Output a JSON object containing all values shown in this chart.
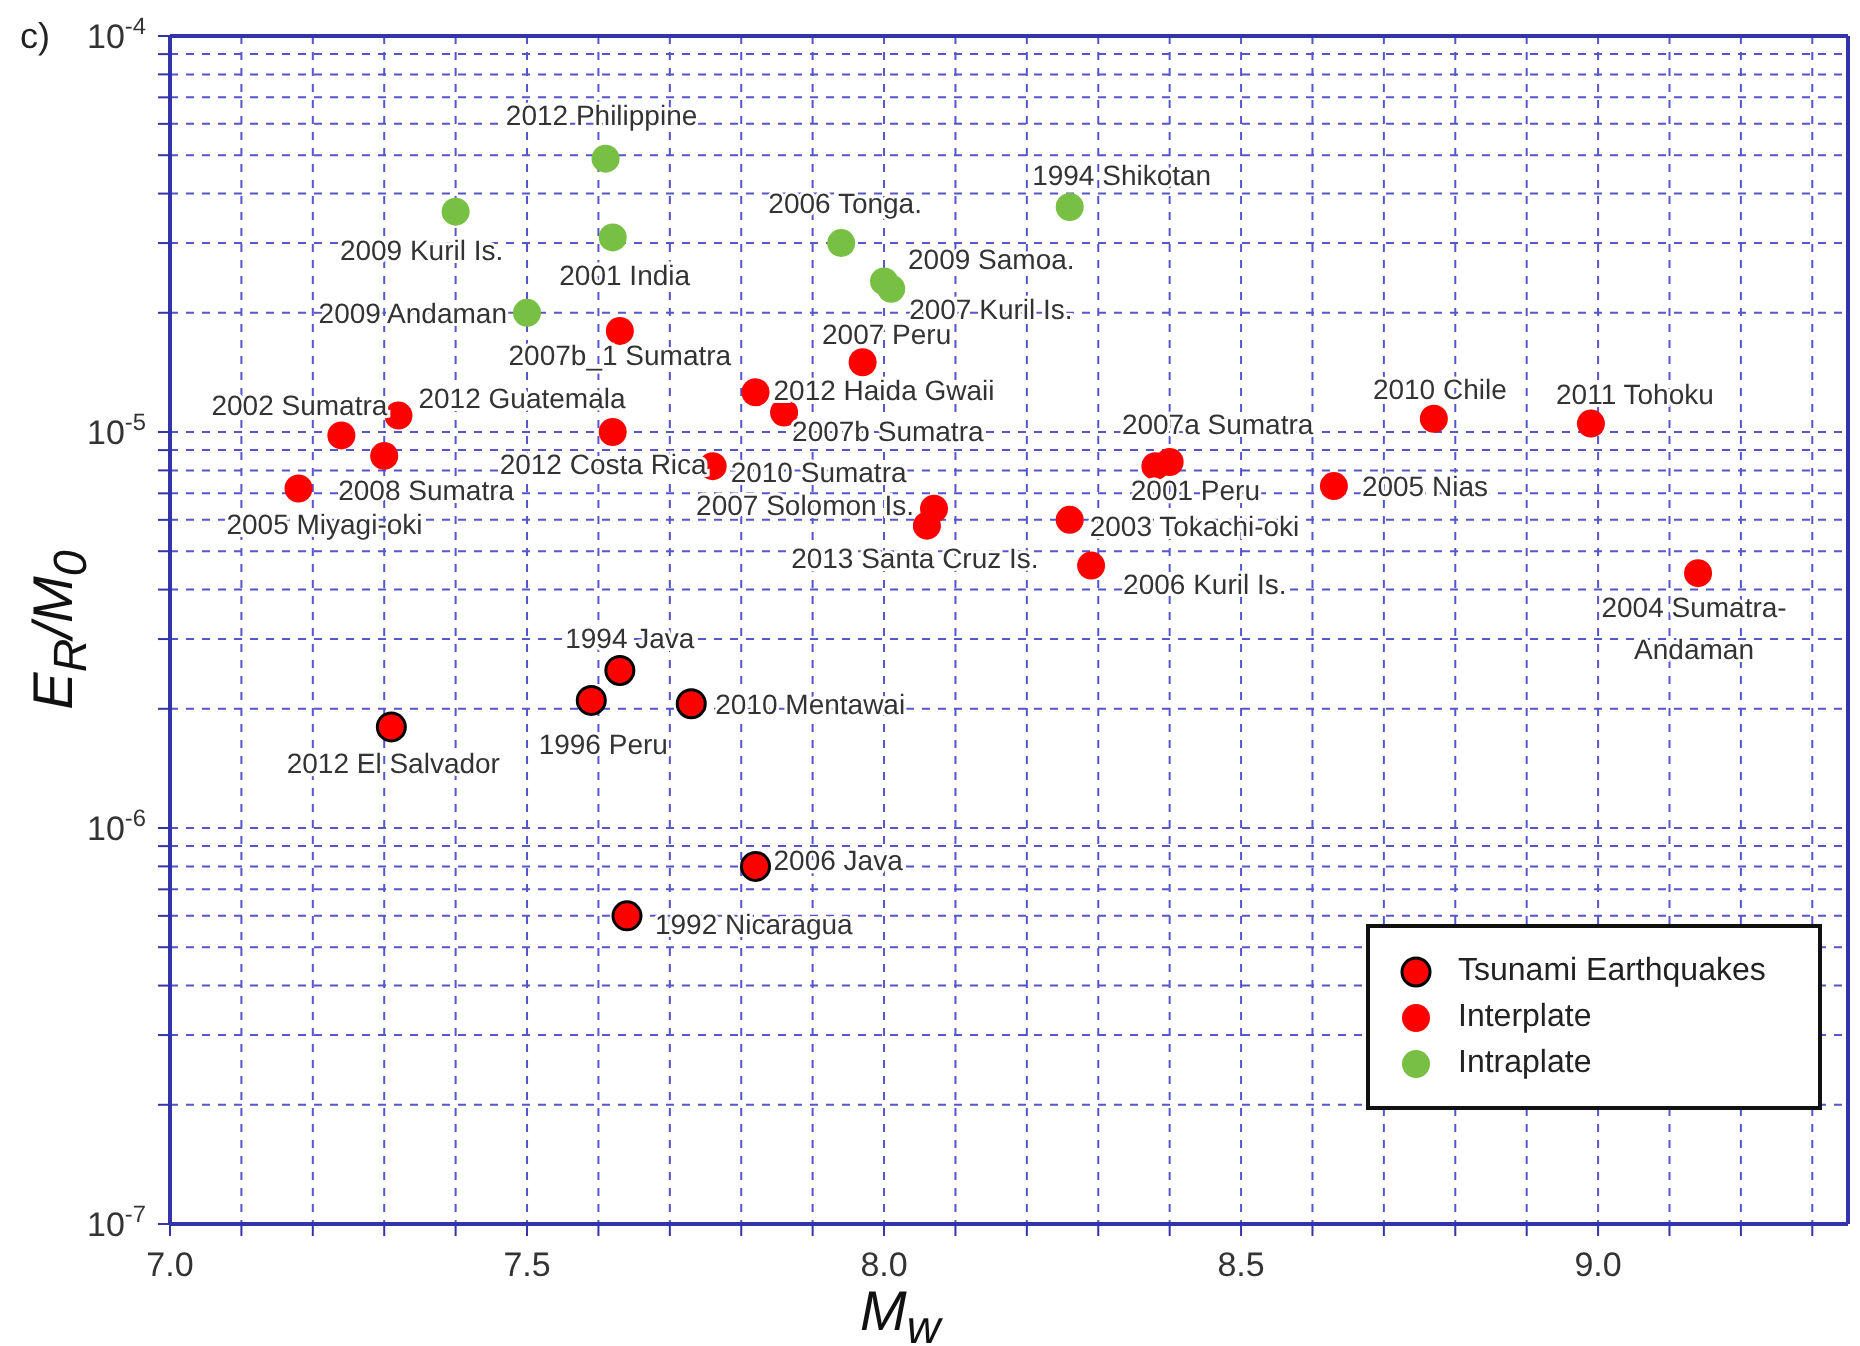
{
  "chart_data": {
    "type": "scatter",
    "xlabel": "M$_{w}$",
    "ylabel": "E$_{R}$/M$_{0}$",
    "log": "y",
    "grid": true,
    "legend": "bottom right",
    "marker": "circle",
    "xlim": [
      7,
      9.35
    ],
    "xticks": [
      {
        "value": 7,
        "label": "7.0"
      },
      {
        "value": 7.1,
        "label": null
      },
      {
        "value": 7.2,
        "label": null
      },
      {
        "value": 7.3,
        "label": null
      },
      {
        "value": 7.4,
        "label": null
      },
      {
        "value": 7.5,
        "label": "7.5"
      },
      {
        "value": 7.6,
        "label": null
      },
      {
        "value": 7.7,
        "label": null
      },
      {
        "value": 7.8,
        "label": null
      },
      {
        "value": 7.9,
        "label": null
      },
      {
        "value": 8,
        "label": "8.0"
      },
      {
        "value": 8.1,
        "label": null
      },
      {
        "value": 8.2,
        "label": null
      },
      {
        "value": 8.3,
        "label": null
      },
      {
        "value": 8.4,
        "label": null
      },
      {
        "value": 8.5,
        "label": "8.5"
      },
      {
        "value": 8.6,
        "label": null
      },
      {
        "value": 8.7,
        "label": null
      },
      {
        "value": 8.8,
        "label": null
      },
      {
        "value": 8.9,
        "label": null
      },
      {
        "value": 9,
        "label": "9.0"
      },
      {
        "value": 9.1,
        "label": null
      },
      {
        "value": 9.2,
        "label": null
      },
      {
        "value": 9.3,
        "label": null
      }
    ],
    "ylim": [
      1e-07,
      0.0001
    ],
    "yticks": [
      {
        "value": 1e-07,
        "label": "10$^{-7}$"
      },
      {
        "value": 2e-07,
        "label": null
      },
      {
        "value": 3e-07,
        "label": null
      },
      {
        "value": 4e-07,
        "label": null
      },
      {
        "value": 5e-07,
        "label": null
      },
      {
        "value": 6e-07,
        "label": null
      },
      {
        "value": 7e-07,
        "label": null
      },
      {
        "value": 8e-07,
        "label": null
      },
      {
        "value": 9e-07,
        "label": null
      },
      {
        "value": 1e-06,
        "label": "10$^{-6}$"
      },
      {
        "value": 2e-06,
        "label": null
      },
      {
        "value": 3e-06,
        "label": null
      },
      {
        "value": 4e-06,
        "label": null
      },
      {
        "value": 5e-06,
        "label": null
      },
      {
        "value": 6e-06,
        "label": null
      },
      {
        "value": 7e-06,
        "label": null
      },
      {
        "value": 8e-06,
        "label": null
      },
      {
        "value": 9e-06,
        "label": null
      },
      {
        "value": 1e-05,
        "label": "10$^{-5}$"
      },
      {
        "value": 2e-05,
        "label": null
      },
      {
        "value": 3e-05,
        "label": null
      },
      {
        "value": 4e-05,
        "label": null
      },
      {
        "value": 5e-05,
        "label": null
      },
      {
        "value": 6e-05,
        "label": null
      },
      {
        "value": 7e-05,
        "label": null
      },
      {
        "value": 8e-05,
        "label": null
      },
      {
        "value": 9e-05,
        "label": null
      },
      {
        "value": 0.0001,
        "label": "10$^{-4}$"
      }
    ],
    "series": [
      {
        "name": "Tsunami Earthquakes",
        "color": "#ff0000",
        "x": [
          7.63,
          7.59,
          7.73,
          7.31,
          7.82,
          7.64
        ],
        "values": [
          2.5e-06,
          2.1e-06,
          2.06e-06,
          1.8e-06,
          8e-07,
          6e-07
        ]
      },
      {
        "name": "Interplate",
        "color": "#ff0000",
        "x": [
          7.63,
          7.97,
          7.82,
          7.86,
          7.32,
          7.24,
          7.3,
          7.18,
          7.62,
          7.76,
          8.07,
          8.06,
          8.4,
          8.38,
          8.26,
          8.29,
          8.63,
          8.77,
          8.99,
          9.14
        ],
        "values": [
          1.8e-05,
          1.5e-05,
          1.26e-05,
          1.12e-05,
          1.1e-05,
          9.8e-06,
          8.7e-06,
          7.2e-06,
          1e-05,
          8.2e-06,
          6.4e-06,
          5.8e-06,
          8.4e-06,
          8.2e-06,
          6e-06,
          4.6e-06,
          7.3e-06,
          1.08e-05,
          1.05e-05,
          4.4e-06
        ]
      },
      {
        "name": "Intraplate",
        "color": "#77c043",
        "x": [
          7.61,
          7.4,
          7.62,
          7.5,
          7.94,
          8.0,
          8.01,
          8.26
        ],
        "values": [
          4.9e-05,
          3.6e-05,
          3.1e-05,
          2e-05,
          3e-05,
          2.4e-05,
          2.3e-05,
          3.7e-05
        ]
      }
    ],
    "annotations": [
      "c)",
      {
        "text": "1994 Java",
        "x": 7.63,
        "y": 2.5e-06
      },
      {
        "text": "1996 Peru",
        "x": 7.59,
        "y": 2.1e-06
      },
      {
        "text": "2010 Mentawai",
        "x": 7.73,
        "y": 2.06e-06
      },
      {
        "text": "2012 El Salvador",
        "x": 7.31,
        "y": 1.8e-06
      },
      {
        "text": "2006 Java",
        "x": 7.82,
        "y": 8e-07
      },
      {
        "text": "1992 Nicaragua",
        "x": 7.64,
        "y": 6e-07
      },
      {
        "text": "2007b_1 Sumatra",
        "x": 7.63,
        "y": 1.8e-05
      },
      {
        "text": "2007 Peru",
        "x": 7.97,
        "y": 1.5e-05
      },
      {
        "text": "2012 Haida Gwaii",
        "x": 7.82,
        "y": 1.26e-05
      },
      {
        "text": "2007b Sumatra",
        "x": 7.86,
        "y": 1.12e-05
      },
      {
        "text": "2012 Guatemala",
        "x": 7.32,
        "y": 1.1e-05
      },
      {
        "text": "2002 Sumatra",
        "x": 7.24,
        "y": 9.8e-06
      },
      {
        "text": "2008 Sumatra",
        "x": 7.3,
        "y": 8.7e-06
      },
      {
        "text": "2005 Miyagi-oki",
        "x": 7.18,
        "y": 7.2e-06
      },
      {
        "text": "2012 Costa Rica",
        "x": 7.62,
        "y": 1e-05
      },
      {
        "text": "2010 Sumatra",
        "x": 7.76,
        "y": 8.2e-06
      },
      {
        "text": "2007 Solomon Is.",
        "x": 8.07,
        "y": 6.4e-06
      },
      {
        "text": "2013 Santa Cruz Is.",
        "x": 8.06,
        "y": 5.8e-06
      },
      {
        "text": "2007a Sumatra",
        "x": 8.4,
        "y": 8.4e-06
      },
      {
        "text": "2001 Peru",
        "x": 8.38,
        "y": 8.2e-06
      },
      {
        "text": "2003 Tokachi-oki",
        "x": 8.26,
        "y": 6e-06
      },
      {
        "text": "2006 Kuril Is.",
        "x": 8.29,
        "y": 4.6e-06
      },
      {
        "text": "2005 Nias",
        "x": 8.63,
        "y": 7.3e-06
      },
      {
        "text": "2010 Chile",
        "x": 8.77,
        "y": 1.08e-05
      },
      {
        "text": "2011 Tohoku",
        "x": 8.99,
        "y": 1.05e-05
      },
      {
        "text": "2004 Sumatra-\nAndaman",
        "x": 9.14,
        "y": 4.4e-06
      },
      {
        "text": "2012 Philippine",
        "x": 7.61,
        "y": 4.9e-05
      },
      {
        "text": "2009 Kuril Is.",
        "x": 7.4,
        "y": 3.6e-05
      },
      {
        "text": "2001 India",
        "x": 7.62,
        "y": 3.1e-05
      },
      {
        "text": "2009 Andaman",
        "x": 7.5,
        "y": 2e-05
      },
      {
        "text": "2006 Tonga.",
        "x": 7.94,
        "y": 3e-05
      },
      {
        "text": "2009 Samoa.",
        "x": 8.0,
        "y": 2.4e-05
      },
      {
        "text": "2007 Kuril Is.",
        "x": 8.01,
        "y": 2.3e-05
      },
      {
        "text": "1994 Shikotan",
        "x": 8.26,
        "y": 3.7e-05
      }
    ]
  }
}
